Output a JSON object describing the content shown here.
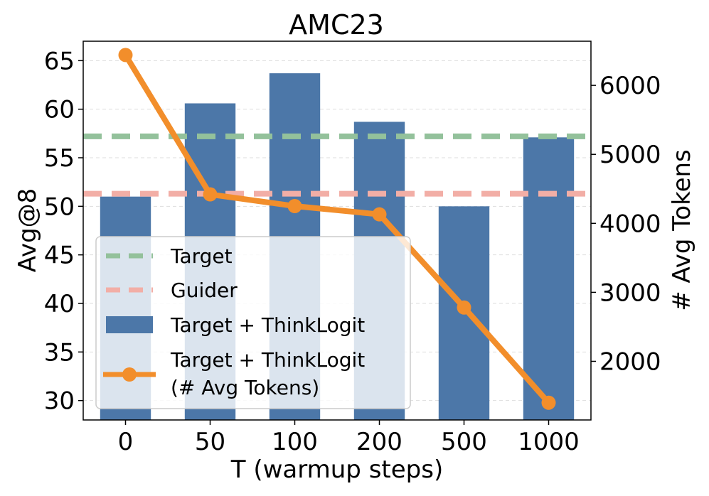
{
  "chart_data": {
    "type": "bar",
    "title": "AMC23",
    "xlabel": "T (warmup steps)",
    "ylabel": "Avg@8",
    "y2label": "# Avg Tokens",
    "categories": [
      "0",
      "50",
      "100",
      "200",
      "500",
      "1000"
    ],
    "ylim": [
      28,
      67
    ],
    "y2lim": [
      1150,
      6640
    ],
    "yticks": [
      30,
      35,
      40,
      45,
      50,
      55,
      60,
      65
    ],
    "y2ticks": [
      2000,
      3000,
      4000,
      5000,
      6000
    ],
    "grid": true,
    "legend_position": "lower-left",
    "series": [
      {
        "name": "Target + ThinkLogit",
        "kind": "bar",
        "axis": "left",
        "color": "#4c77a8",
        "values": [
          51.0,
          60.6,
          63.7,
          58.7,
          50.0,
          57.1
        ]
      },
      {
        "name": "Target + ThinkLogit (# Avg Tokens)",
        "kind": "line",
        "axis": "right",
        "color": "#f28e2b",
        "values": [
          6440,
          4420,
          4250,
          4130,
          2780,
          1400
        ]
      }
    ],
    "reference_lines": [
      {
        "name": "Target",
        "value": 57.2,
        "axis": "left",
        "color": "#93c19b",
        "style": "dashed"
      },
      {
        "name": "Guider",
        "value": 51.3,
        "axis": "left",
        "color": "#f2aea6",
        "style": "dashed"
      }
    ],
    "legend": [
      {
        "label": "Target",
        "type": "dashed",
        "color": "#93c19b"
      },
      {
        "label": "Guider",
        "type": "dashed",
        "color": "#f2aea6"
      },
      {
        "label": "Target + ThinkLogit",
        "type": "bar",
        "color": "#4c77a8"
      },
      {
        "label_lines": [
          "Target + ThinkLogit",
          "(# Avg Tokens)"
        ],
        "type": "line-marker",
        "color": "#f28e2b"
      }
    ]
  }
}
